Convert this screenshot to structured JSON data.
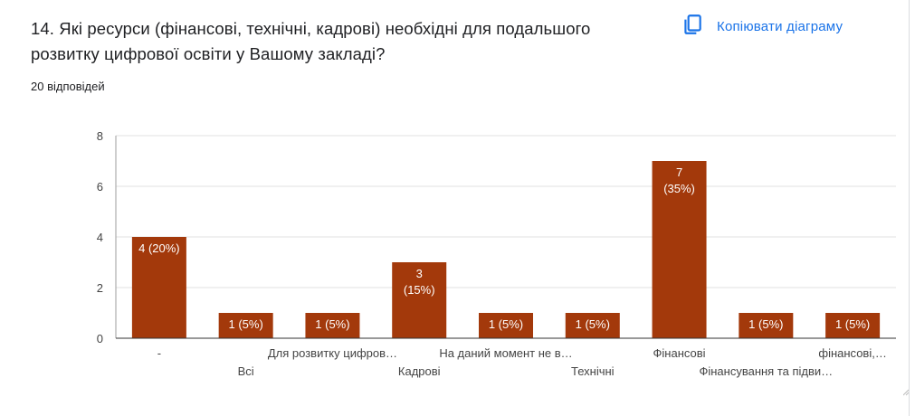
{
  "question": {
    "title": "14.  Які ресурси (фінансові, технічні, кадрові) необхідні для подальшого розвитку цифрової освіти у Вашому закладі?",
    "responses": "20 відповідей"
  },
  "copy_button": {
    "label": "Копіювати діаграму",
    "icon": "copy-icon"
  },
  "colors": {
    "bar": "#a3390b",
    "grid": "#e0e0e0",
    "accent": "#1a73e8",
    "axis_text": "#444444"
  },
  "chart_data": {
    "type": "bar",
    "categories": [
      "-",
      "Всі",
      "Для розвитку цифров…",
      "Кадрові",
      "На даний момент не в…",
      "Технічні",
      "Фінансові",
      "Фінансування та підви…",
      "фінансові,…"
    ],
    "values": [
      4,
      1,
      1,
      3,
      1,
      1,
      7,
      1,
      1
    ],
    "data_labels": [
      [
        "4 (20%)"
      ],
      [
        "1 (5%)"
      ],
      [
        "1 (5%)"
      ],
      [
        "3",
        "(15%)"
      ],
      [
        "1 (5%)"
      ],
      [
        "1 (5%)"
      ],
      [
        "7",
        "(35%)"
      ],
      [
        "1 (5%)"
      ],
      [
        "1 (5%)"
      ]
    ],
    "yticks": [
      "0",
      "2",
      "4",
      "6",
      "8"
    ],
    "ylim": [
      0,
      8
    ],
    "grid": true
  }
}
